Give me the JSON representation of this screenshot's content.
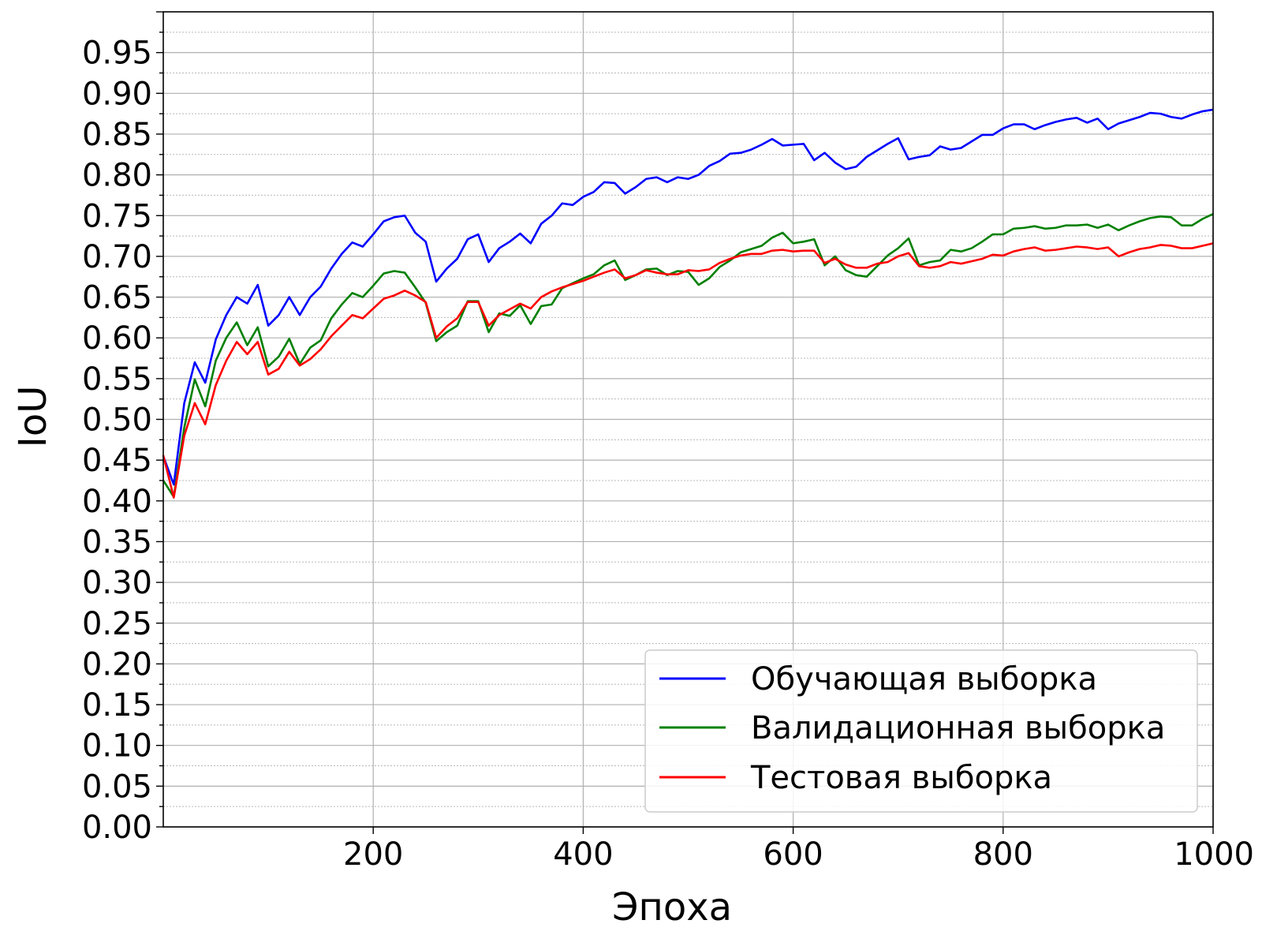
{
  "chart_data": {
    "type": "line",
    "title": "",
    "xlabel": "Эпоха",
    "ylabel": "IoU",
    "xlim": [
      0,
      1000
    ],
    "ylim": [
      0,
      1.0
    ],
    "xticks": [
      200,
      400,
      600,
      800,
      1000
    ],
    "yticks": [
      0.0,
      0.05,
      0.1,
      0.15,
      0.2,
      0.25,
      0.3,
      0.35,
      0.4,
      0.45,
      0.5,
      0.55,
      0.6,
      0.65,
      0.7,
      0.75,
      0.8,
      0.85,
      0.9,
      0.95
    ],
    "xtick_labels": [
      "200",
      "400",
      "600",
      "800",
      "1000"
    ],
    "ytick_labels": [
      "0.00",
      "0.05",
      "0.10",
      "0.15",
      "0.20",
      "0.25",
      "0.30",
      "0.35",
      "0.40",
      "0.45",
      "0.50",
      "0.55",
      "0.60",
      "0.65",
      "0.70",
      "0.75",
      "0.80",
      "0.85",
      "0.90",
      "0.95"
    ],
    "grid": true,
    "minor_grid": true,
    "legend_position": "bottom-right",
    "x": [
      0,
      10,
      20,
      30,
      40,
      50,
      60,
      70,
      80,
      90,
      100,
      110,
      120,
      130,
      140,
      150,
      160,
      170,
      180,
      190,
      200,
      210,
      220,
      230,
      240,
      250,
      260,
      270,
      280,
      290,
      300,
      310,
      320,
      330,
      340,
      350,
      360,
      370,
      380,
      390,
      400,
      410,
      420,
      430,
      440,
      450,
      460,
      470,
      480,
      490,
      500,
      510,
      520,
      530,
      540,
      550,
      560,
      570,
      580,
      590,
      600,
      610,
      620,
      630,
      640,
      650,
      660,
      670,
      680,
      690,
      700,
      710,
      720,
      730,
      740,
      750,
      760,
      770,
      780,
      790,
      800,
      810,
      820,
      830,
      840,
      850,
      860,
      870,
      880,
      890,
      900,
      910,
      920,
      930,
      940,
      950,
      960,
      970,
      980,
      990,
      1000
    ],
    "series": [
      {
        "name": "Обучающая выборка",
        "color": "#0000ff",
        "values": [
          0.455,
          0.42,
          0.52,
          0.57,
          0.545,
          0.598,
          0.628,
          0.65,
          0.642,
          0.665,
          0.615,
          0.628,
          0.65,
          0.628,
          0.65,
          0.663,
          0.685,
          0.703,
          0.717,
          0.712,
          0.727,
          0.743,
          0.748,
          0.75,
          0.729,
          0.718,
          0.669,
          0.685,
          0.697,
          0.721,
          0.727,
          0.693,
          0.71,
          0.718,
          0.728,
          0.716,
          0.74,
          0.75,
          0.765,
          0.763,
          0.773,
          0.779,
          0.791,
          0.79,
          0.777,
          0.785,
          0.795,
          0.797,
          0.791,
          0.797,
          0.795,
          0.8,
          0.811,
          0.817,
          0.826,
          0.827,
          0.831,
          0.837,
          0.844,
          0.836,
          0.837,
          0.838,
          0.818,
          0.827,
          0.815,
          0.807,
          0.81,
          0.822,
          0.83,
          0.838,
          0.845,
          0.819,
          0.822,
          0.824,
          0.835,
          0.831,
          0.833,
          0.841,
          0.849,
          0.849,
          0.857,
          0.862,
          0.862,
          0.856,
          0.861,
          0.865,
          0.868,
          0.87,
          0.864,
          0.869,
          0.856,
          0.863,
          0.867,
          0.871,
          0.876,
          0.875,
          0.871,
          0.869,
          0.874,
          0.878,
          0.88
        ]
      },
      {
        "name": "Валидационная выборка",
        "color": "#008000",
        "values": [
          0.425,
          0.405,
          0.49,
          0.549,
          0.516,
          0.572,
          0.6,
          0.619,
          0.591,
          0.613,
          0.565,
          0.577,
          0.599,
          0.568,
          0.588,
          0.597,
          0.624,
          0.641,
          0.655,
          0.65,
          0.664,
          0.679,
          0.682,
          0.68,
          0.662,
          0.643,
          0.596,
          0.607,
          0.615,
          0.645,
          0.645,
          0.607,
          0.63,
          0.627,
          0.64,
          0.617,
          0.639,
          0.641,
          0.661,
          0.667,
          0.673,
          0.678,
          0.689,
          0.695,
          0.671,
          0.677,
          0.684,
          0.685,
          0.677,
          0.682,
          0.681,
          0.665,
          0.673,
          0.687,
          0.695,
          0.705,
          0.709,
          0.713,
          0.723,
          0.729,
          0.716,
          0.718,
          0.721,
          0.689,
          0.7,
          0.683,
          0.677,
          0.675,
          0.688,
          0.701,
          0.71,
          0.722,
          0.689,
          0.693,
          0.695,
          0.708,
          0.706,
          0.71,
          0.718,
          0.727,
          0.727,
          0.734,
          0.735,
          0.737,
          0.734,
          0.735,
          0.738,
          0.738,
          0.739,
          0.735,
          0.739,
          0.732,
          0.738,
          0.743,
          0.747,
          0.749,
          0.748,
          0.738,
          0.738,
          0.746,
          0.752
        ]
      },
      {
        "name": "Тестовая выборка",
        "color": "#ff0000",
        "values": [
          0.456,
          0.404,
          0.48,
          0.52,
          0.494,
          0.542,
          0.572,
          0.595,
          0.58,
          0.595,
          0.555,
          0.562,
          0.583,
          0.566,
          0.574,
          0.586,
          0.602,
          0.615,
          0.628,
          0.624,
          0.636,
          0.648,
          0.652,
          0.658,
          0.652,
          0.644,
          0.6,
          0.614,
          0.624,
          0.644,
          0.644,
          0.615,
          0.628,
          0.635,
          0.642,
          0.636,
          0.65,
          0.657,
          0.662,
          0.666,
          0.67,
          0.675,
          0.68,
          0.684,
          0.673,
          0.677,
          0.683,
          0.68,
          0.678,
          0.678,
          0.683,
          0.682,
          0.684,
          0.692,
          0.697,
          0.701,
          0.703,
          0.703,
          0.707,
          0.708,
          0.706,
          0.707,
          0.707,
          0.692,
          0.697,
          0.69,
          0.686,
          0.686,
          0.691,
          0.693,
          0.7,
          0.704,
          0.688,
          0.686,
          0.688,
          0.693,
          0.691,
          0.694,
          0.697,
          0.702,
          0.701,
          0.706,
          0.709,
          0.711,
          0.707,
          0.708,
          0.71,
          0.712,
          0.711,
          0.709,
          0.711,
          0.7,
          0.705,
          0.709,
          0.711,
          0.714,
          0.713,
          0.71,
          0.71,
          0.713,
          0.716
        ]
      }
    ]
  }
}
